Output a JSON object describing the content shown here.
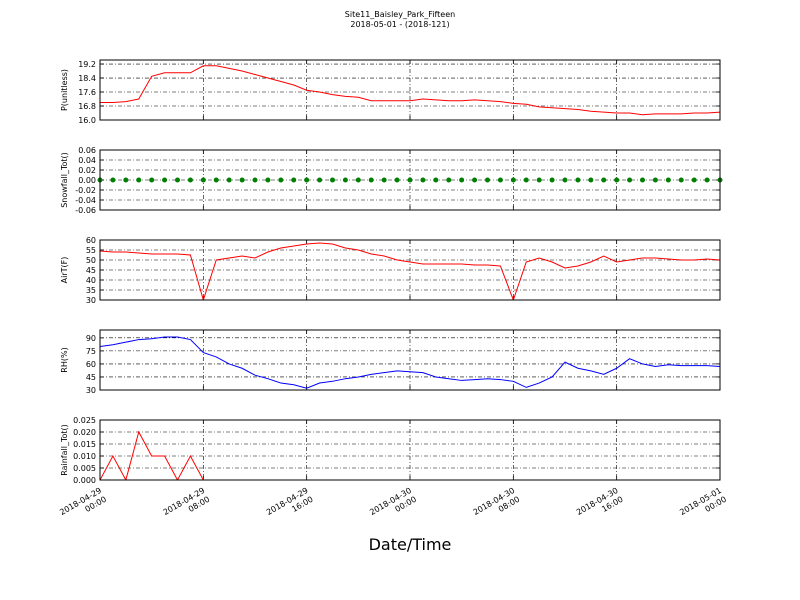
{
  "chart_data": {
    "title": "Site11_Baisley_Park_Fifteen",
    "subtitle": "2018-05-01 - (2018-121)",
    "xlabel": "Date/Time",
    "x": [
      "2018-04-29 00:00",
      "2018-04-29 01:00",
      "2018-04-29 02:00",
      "2018-04-29 03:00",
      "2018-04-29 04:00",
      "2018-04-29 05:00",
      "2018-04-29 06:00",
      "2018-04-29 07:00",
      "2018-04-29 08:00",
      "2018-04-29 09:00",
      "2018-04-29 10:00",
      "2018-04-29 11:00",
      "2018-04-29 12:00",
      "2018-04-29 13:00",
      "2018-04-29 14:00",
      "2018-04-29 15:00",
      "2018-04-29 16:00",
      "2018-04-29 17:00",
      "2018-04-29 18:00",
      "2018-04-29 19:00",
      "2018-04-29 20:00",
      "2018-04-29 21:00",
      "2018-04-29 22:00",
      "2018-04-29 23:00",
      "2018-04-30 00:00",
      "2018-04-30 01:00",
      "2018-04-30 02:00",
      "2018-04-30 03:00",
      "2018-04-30 04:00",
      "2018-04-30 05:00",
      "2018-04-30 06:00",
      "2018-04-30 07:00",
      "2018-04-30 08:00",
      "2018-04-30 09:00",
      "2018-04-30 10:00",
      "2018-04-30 11:00",
      "2018-04-30 12:00",
      "2018-04-30 13:00",
      "2018-04-30 14:00",
      "2018-04-30 15:00",
      "2018-04-30 16:00",
      "2018-04-30 17:00",
      "2018-04-30 18:00",
      "2018-04-30 19:00",
      "2018-04-30 20:00",
      "2018-04-30 21:00",
      "2018-04-30 22:00",
      "2018-04-30 23:00",
      "2018-05-01 00:00"
    ],
    "xlim": [
      "2018-04-29 00:00",
      "2018-05-01 00:00"
    ],
    "xticks": [
      "2018-04-29 00:00",
      "2018-04-29 08:00",
      "2018-04-29 16:00",
      "2018-04-30 00:00",
      "2018-04-30 08:00",
      "2018-04-30 16:00",
      "2018-05-01 00:00"
    ],
    "grid": true,
    "panels": [
      {
        "type": "line",
        "ylabel": "P(unitless)",
        "color": "#ff0000",
        "ylim": [
          16.0,
          19.43
        ],
        "yticks": [
          {
            "value": 16.0,
            "label": "16.0"
          },
          16.8,
          17.6,
          18.4,
          19.2
        ],
        "values": [
          17.0,
          17.0,
          17.05,
          17.2,
          18.5,
          18.7,
          18.7,
          18.7,
          19.1,
          19.1,
          18.95,
          18.8,
          18.6,
          18.4,
          18.2,
          18.0,
          17.7,
          17.6,
          17.45,
          17.35,
          17.3,
          17.1,
          17.1,
          17.1,
          17.1,
          17.2,
          17.15,
          17.1,
          17.1,
          17.15,
          17.1,
          17.05,
          16.95,
          16.9,
          16.75,
          16.7,
          16.65,
          16.6,
          16.5,
          16.45,
          16.4,
          16.4,
          16.3,
          16.35,
          16.35,
          16.35,
          16.4,
          16.4,
          16.45
        ]
      },
      {
        "type": "scatter",
        "ylabel": "Snowfall_Tot()",
        "color": "#008000",
        "ylim": [
          -0.06,
          0.06
        ],
        "yticks": [
          {
            "value": -0.06,
            "label": "-0.06"
          },
          {
            "value": -0.04,
            "label": "-0.04"
          },
          {
            "value": -0.02,
            "label": "-0.02"
          },
          {
            "value": 0,
            "label": "0.00"
          },
          0.02,
          0.04,
          0.06
        ],
        "values": [
          0,
          0,
          0,
          0,
          0,
          0,
          0,
          0,
          0,
          0,
          0,
          0,
          0,
          0,
          0,
          0,
          0,
          0,
          0,
          0,
          0,
          0,
          0,
          0,
          0,
          0,
          0,
          0,
          0,
          0,
          0,
          0,
          0,
          0,
          0,
          0,
          0,
          0,
          0,
          0,
          0,
          0,
          0,
          0,
          0,
          0,
          0,
          0,
          0
        ]
      },
      {
        "type": "line",
        "ylabel": "AirT(F)",
        "color": "#ff0000",
        "ylim": [
          30,
          60
        ],
        "yticks": [
          30,
          35,
          40,
          45,
          50,
          55,
          60
        ],
        "values": [
          54.5,
          54,
          54,
          53.5,
          53,
          53,
          53,
          52.5,
          30,
          50,
          51,
          52,
          51,
          54,
          56,
          57,
          58,
          58.5,
          58,
          56,
          55,
          53,
          52,
          50,
          49,
          48,
          48,
          48,
          48,
          47.5,
          47.5,
          47,
          30,
          49,
          51,
          49,
          46,
          47,
          49,
          52,
          49,
          50,
          51,
          51,
          50.5,
          50,
          50,
          50.5,
          50
        ]
      },
      {
        "type": "line",
        "ylabel": "RH(%)",
        "color": "#0000ff",
        "ylim": [
          30,
          99
        ],
        "yticks": [
          30,
          45,
          60,
          75,
          90
        ],
        "values": [
          80,
          82,
          85,
          88,
          89,
          91,
          91,
          88,
          73,
          68,
          60,
          55,
          47,
          43,
          38,
          36,
          32,
          38,
          40,
          43,
          45,
          48,
          50,
          52,
          51,
          50,
          45,
          43,
          41,
          42,
          43,
          42,
          40,
          33,
          38,
          45,
          62,
          55,
          52,
          48,
          55,
          66,
          60,
          57,
          59,
          58,
          58,
          58,
          57
        ]
      },
      {
        "type": "line",
        "ylabel": "Rainfall_Tot()",
        "color": "#ff0000",
        "ylim": [
          0,
          0.025
        ],
        "yticks": [
          {
            "value": 0,
            "label": "0.000"
          },
          0.005,
          {
            "value": 0.01,
            "label": "0.010"
          },
          0.015,
          {
            "value": 0.02,
            "label": "0.020"
          },
          0.025
        ],
        "values": [
          0,
          0.01,
          0,
          0.02,
          0.01,
          0.01,
          0,
          0.01,
          0,
          0,
          0,
          0,
          0,
          0,
          0,
          0,
          0,
          0,
          0,
          0,
          0,
          0,
          0,
          0,
          0,
          0,
          0,
          0,
          0,
          0,
          0,
          0,
          0,
          0,
          0,
          0,
          0,
          0,
          0,
          0,
          0,
          0,
          0,
          0,
          0,
          0,
          0,
          0,
          0
        ]
      }
    ]
  }
}
